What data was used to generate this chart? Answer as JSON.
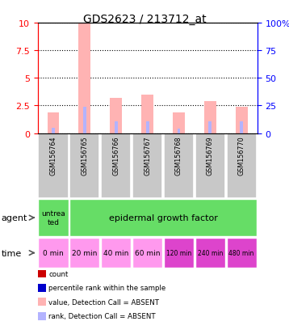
{
  "title": "GDS2623 / 213712_at",
  "samples": [
    "GSM156764",
    "GSM156765",
    "GSM156766",
    "GSM156767",
    "GSM156768",
    "GSM156769",
    "GSM156770"
  ],
  "pink_bars": [
    1.9,
    9.9,
    3.2,
    3.5,
    1.9,
    2.9,
    2.4
  ],
  "blue_bars": [
    0.5,
    2.4,
    1.1,
    1.1,
    0.4,
    1.1,
    1.1
  ],
  "ylim_left": [
    0,
    10
  ],
  "ylim_right": [
    0,
    100
  ],
  "yticks_left": [
    0,
    2.5,
    5,
    7.5,
    10
  ],
  "yticks_right": [
    0,
    25,
    50,
    75,
    100
  ],
  "time_labels": [
    "0 min",
    "20 min",
    "40 min",
    "60 min",
    "120 min",
    "240 min",
    "480 min"
  ],
  "pink_bar_color": "#ffb3b3",
  "blue_bar_color": "#b3b3ff",
  "grid_color": "#000000",
  "sample_bg_color": "#c8c8c8",
  "agent_green": "#66dd66",
  "time_light_pink": "#ff99ee",
  "time_dark_pink": "#dd44cc",
  "legend_colors": [
    "#cc0000",
    "#0000cc",
    "#ffb3b3",
    "#b3b3ff"
  ],
  "legend_labels": [
    "count",
    "percentile rank within the sample",
    "value, Detection Call = ABSENT",
    "rank, Detection Call = ABSENT"
  ]
}
